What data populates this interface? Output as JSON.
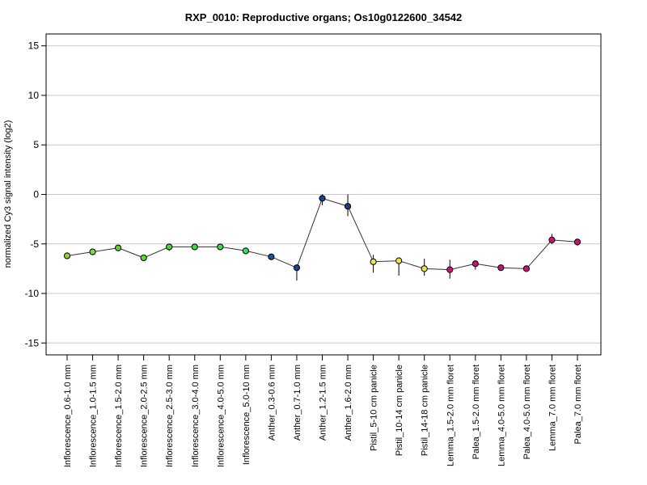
{
  "chart_data": {
    "type": "line",
    "title": "RXP_0010: Reproductive organs; Os10g0122600_34542",
    "ylabel": "normalized Cy3 signal intensity (log2)",
    "xlabel": "",
    "ylim": [
      -16.2,
      16.2
    ],
    "yticks": [
      -15,
      -10,
      -5,
      0,
      5,
      10,
      15
    ],
    "grid": true,
    "categories": [
      "Inflorescence_0.6-1.0 mm",
      "Inflorescence_1.0-1.5 mm",
      "Inflorescence_1.5-2.0 mm",
      "Inflorescence_2.0-2.5 mm",
      "Inflorescence_2.5-3.0 mm",
      "Inflorescence_3.0-4.0 mm",
      "Inflorescence_4.0-5.0 mm",
      "Inflorescence_5.0-10 mm",
      "Anther_0.3-0.6 mm",
      "Anther_0.7-1.0 mm",
      "Anther_1.2-1.5 mm",
      "Anther_1.6-2.0 mm",
      "Pistil_5-10 cm panicle",
      "Pistil_10-14 cm panicle",
      "Pistil_14-18 cm panicle",
      "Lemma_1.5-2.0 mm floret",
      "Palea_1.5-2.0 mm floret",
      "Lemma_4.0-5.0 mm floret",
      "Palea_4.0-5.0 mm floret",
      "Lemma_7.0 mm floret",
      "Palea_7.0 mm floret"
    ],
    "values": [
      -6.2,
      -5.8,
      -5.4,
      -6.4,
      -5.3,
      -5.3,
      -5.3,
      -5.7,
      -6.3,
      -7.4,
      -0.4,
      -1.2,
      -6.8,
      -6.7,
      -7.5,
      -7.6,
      -7.0,
      -7.4,
      -7.5,
      -4.6,
      -4.8
    ],
    "error_low": [
      -6.4,
      -6.0,
      -5.7,
      -6.5,
      -5.7,
      -5.5,
      -5.5,
      -5.9,
      -6.6,
      -8.7,
      -1.1,
      -2.2,
      -7.9,
      -8.2,
      -8.2,
      -8.5,
      -7.6,
      -7.6,
      -7.8,
      -5.0,
      -5.2
    ],
    "error_high": [
      -6.0,
      -5.6,
      -5.1,
      -6.3,
      -5.0,
      -5.1,
      -5.1,
      -5.5,
      -6.0,
      -7.1,
      0.0,
      0.0,
      -6.1,
      -6.5,
      -6.5,
      -6.6,
      -6.8,
      -7.2,
      -7.2,
      -4.0,
      -4.5
    ],
    "point_colors": [
      "#9acd32",
      "#7fd84a",
      "#66cc33",
      "#55dd22",
      "#44dd33",
      "#33dd44",
      "#33dd55",
      "#33dd66",
      "#1f4faa",
      "#183f99",
      "#1a3f9a",
      "#1e3f88",
      "#e6e64a",
      "#e6e64a",
      "#e6e64a",
      "#cc1177",
      "#cc1177",
      "#cc1177",
      "#cc1177",
      "#cc1177",
      "#cc1177"
    ]
  }
}
